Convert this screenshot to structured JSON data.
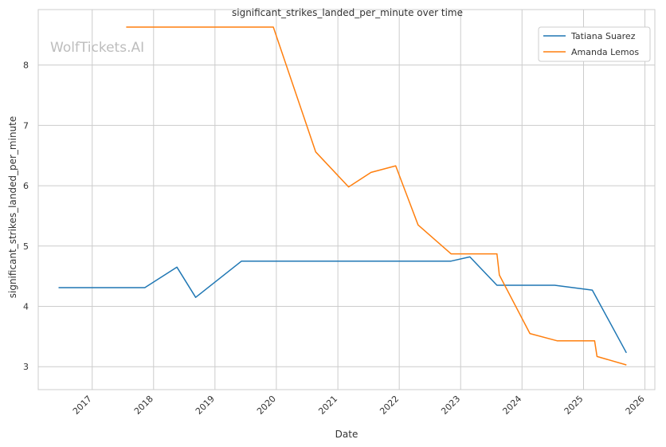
{
  "chart_data": {
    "type": "line",
    "title": "significant_strikes_landed_per_minute over time",
    "xlabel": "Date",
    "ylabel": "significant_strikes_landed_per_minute",
    "watermark": "WolfTickets.AI",
    "grid": true,
    "legend_position": "top-right",
    "xlim": [
      "2016-02-15",
      "2026-03-01"
    ],
    "ylim": [
      2.62,
      8.92
    ],
    "x_ticks": [
      "2017",
      "2018",
      "2019",
      "2020",
      "2021",
      "2022",
      "2023",
      "2024",
      "2025",
      "2026"
    ],
    "y_ticks": [
      "3",
      "4",
      "5",
      "6",
      "7",
      "8"
    ],
    "series": [
      {
        "name": "Tatiana Suarez",
        "color": "#1f77b4",
        "points": [
          {
            "x": "2016-06-15",
            "y": 4.31
          },
          {
            "x": "2017-11-10",
            "y": 4.31
          },
          {
            "x": "2018-05-20",
            "y": 4.65
          },
          {
            "x": "2018-09-08",
            "y": 4.15
          },
          {
            "x": "2019-06-08",
            "y": 4.75
          },
          {
            "x": "2022-11-05",
            "y": 4.75
          },
          {
            "x": "2023-02-25",
            "y": 4.82
          },
          {
            "x": "2023-08-05",
            "y": 4.35
          },
          {
            "x": "2024-07-13",
            "y": 4.35
          },
          {
            "x": "2025-02-22",
            "y": 4.27
          },
          {
            "x": "2025-09-13",
            "y": 3.23
          }
        ]
      },
      {
        "name": "Amanda Lemos",
        "color": "#ff7f0e",
        "points": [
          {
            "x": "2017-07-22",
            "y": 8.63
          },
          {
            "x": "2019-12-14",
            "y": 8.63
          },
          {
            "x": "2020-08-22",
            "y": 6.56
          },
          {
            "x": "2021-03-06",
            "y": 5.98
          },
          {
            "x": "2021-07-17",
            "y": 6.22
          },
          {
            "x": "2021-12-11",
            "y": 6.33
          },
          {
            "x": "2022-04-23",
            "y": 5.35
          },
          {
            "x": "2022-11-05",
            "y": 4.87
          },
          {
            "x": "2023-08-05",
            "y": 4.87
          },
          {
            "x": "2023-08-19",
            "y": 4.52
          },
          {
            "x": "2024-02-17",
            "y": 3.55
          },
          {
            "x": "2024-07-27",
            "y": 3.43
          },
          {
            "x": "2025-03-08",
            "y": 3.43
          },
          {
            "x": "2025-03-22",
            "y": 3.17
          },
          {
            "x": "2025-09-13",
            "y": 3.03
          }
        ]
      }
    ]
  }
}
